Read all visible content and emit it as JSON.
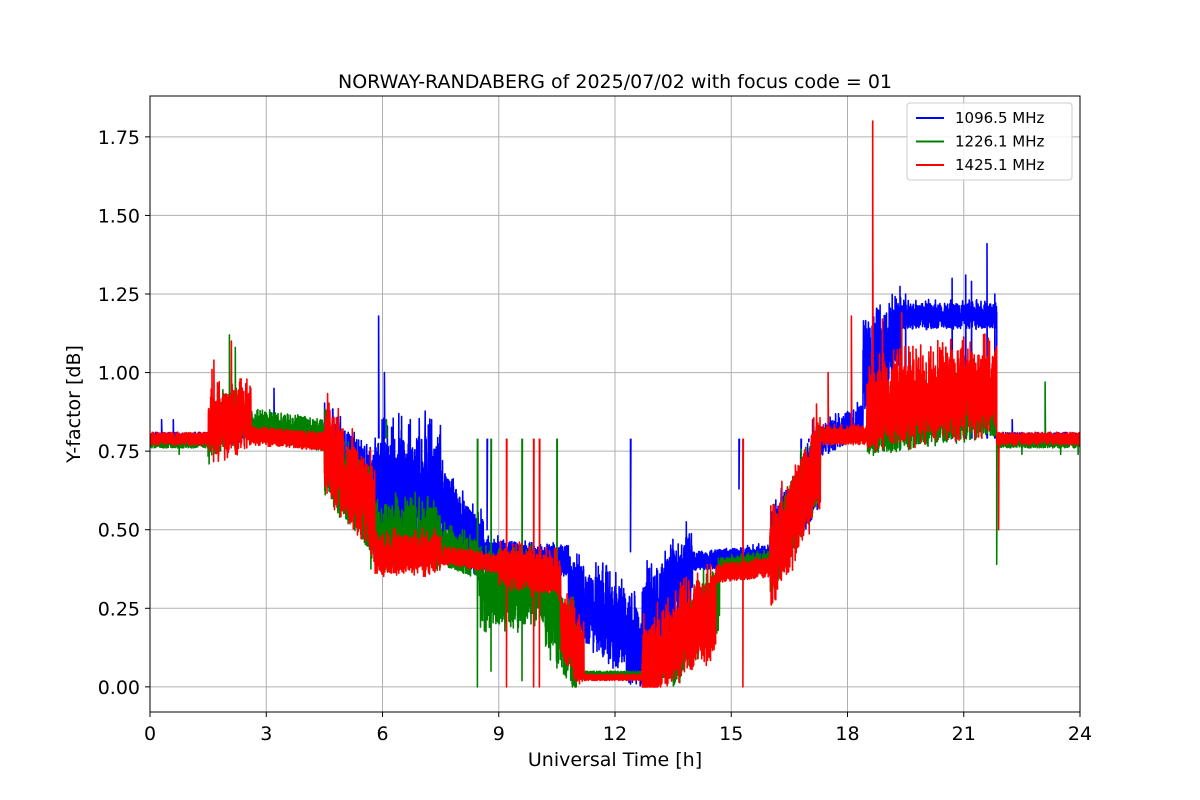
{
  "chart_data": {
    "type": "line",
    "title": "NORWAY-RANDABERG of 2025/07/02 with focus code = 01",
    "xlabel": "Universal Time [h]",
    "ylabel": "Y-factor [dB]",
    "xlim": [
      0,
      24
    ],
    "ylim": [
      -0.08,
      1.88
    ],
    "xticks": [
      0,
      3,
      6,
      9,
      12,
      15,
      18,
      21,
      24
    ],
    "xtick_labels": [
      "0",
      "3",
      "6",
      "9",
      "12",
      "15",
      "18",
      "21",
      "24"
    ],
    "yticks": [
      0.0,
      0.25,
      0.5,
      0.75,
      1.0,
      1.25,
      1.5,
      1.75
    ],
    "ytick_labels": [
      "0.00",
      "0.25",
      "0.50",
      "0.75",
      "1.00",
      "1.25",
      "1.50",
      "1.75"
    ],
    "grid": true,
    "legend_position": "top-right",
    "series": [
      {
        "name": "1096.5 MHz",
        "color": "#0000ff",
        "segments": [
          [
            0.0,
            0.79,
            1.5,
            0.79,
            0.02,
            0.05,
            0.8
          ],
          [
            1.5,
            0.79,
            2.8,
            0.82,
            0.03,
            0.1,
            0.9
          ],
          [
            2.8,
            0.82,
            4.5,
            0.78,
            0.03,
            0.1,
            0.9
          ],
          [
            4.5,
            0.76,
            5.8,
            0.62,
            0.12,
            0.2,
            1.2
          ],
          [
            5.8,
            0.62,
            7.5,
            0.62,
            0.18,
            0.2,
            1.3
          ],
          [
            7.5,
            0.6,
            8.6,
            0.42,
            0.1,
            0.15,
            1.3
          ],
          [
            8.6,
            0.42,
            10.8,
            0.4,
            0.05,
            0.1,
            1.2
          ],
          [
            10.8,
            0.3,
            12.7,
            0.12,
            0.12,
            0.25,
            1.4
          ],
          [
            12.7,
            0.2,
            14.0,
            0.38,
            0.12,
            0.2,
            1.4
          ],
          [
            14.0,
            0.4,
            16.0,
            0.42,
            0.03,
            0.12,
            1.2
          ],
          [
            16.0,
            0.42,
            17.3,
            0.7,
            0.12,
            0.15,
            1.2
          ],
          [
            17.3,
            0.78,
            18.4,
            0.85,
            0.05,
            0.15,
            1.2
          ],
          [
            18.4,
            1.0,
            19.4,
            1.12,
            0.12,
            0.25,
            1.4
          ],
          [
            19.4,
            1.18,
            21.85,
            1.18,
            0.04,
            0.2,
            1.2
          ],
          [
            21.85,
            0.79,
            24.0,
            0.79,
            0.02,
            0.05,
            0.8
          ]
        ],
        "spikes": [
          [
            0.3,
            0.85
          ],
          [
            0.6,
            0.85
          ],
          [
            1.9,
            0.88
          ],
          [
            3.2,
            0.95
          ],
          [
            5.9,
            1.18
          ],
          [
            6.05,
            1.0
          ],
          [
            8.7,
            0.5
          ],
          [
            12.4,
            0.43
          ],
          [
            15.2,
            0.63
          ],
          [
            16.8,
            0.7
          ],
          [
            17.0,
            0.78
          ],
          [
            17.1,
            0.85
          ],
          [
            19.5,
            1.25
          ],
          [
            20.7,
            1.3
          ],
          [
            21.05,
            1.31
          ],
          [
            21.2,
            1.29
          ],
          [
            21.6,
            1.41
          ],
          [
            21.8,
            1.25
          ],
          [
            22.25,
            0.85
          ]
        ]
      },
      {
        "name": "1226.1 MHz",
        "color": "#008000",
        "segments": [
          [
            0.0,
            0.78,
            1.5,
            0.78,
            0.02,
            0.1,
            0.8
          ],
          [
            1.5,
            0.8,
            2.4,
            0.88,
            0.08,
            0.2,
            1.3
          ],
          [
            2.4,
            0.84,
            4.5,
            0.8,
            0.05,
            0.15,
            1.0
          ],
          [
            4.5,
            0.74,
            5.7,
            0.55,
            0.12,
            0.2,
            1.3
          ],
          [
            5.7,
            0.48,
            7.5,
            0.48,
            0.1,
            0.2,
            1.3
          ],
          [
            7.5,
            0.45,
            8.5,
            0.4,
            0.06,
            0.2,
            1.3
          ],
          [
            8.5,
            0.3,
            10.2,
            0.3,
            0.1,
            0.25,
            1.4
          ],
          [
            10.2,
            0.25,
            11.0,
            0.1,
            0.12,
            0.2,
            1.3
          ],
          [
            11.0,
            0.04,
            13.5,
            0.04,
            0.01,
            0.05,
            1.0
          ],
          [
            13.5,
            0.1,
            14.7,
            0.3,
            0.1,
            0.2,
            1.3
          ],
          [
            14.7,
            0.38,
            16.0,
            0.4,
            0.03,
            0.1,
            1.1
          ],
          [
            16.0,
            0.4,
            17.3,
            0.72,
            0.12,
            0.15,
            1.2
          ],
          [
            17.3,
            0.8,
            18.5,
            0.8,
            0.02,
            0.1,
            1.0
          ],
          [
            18.5,
            0.82,
            21.85,
            0.88,
            0.08,
            0.25,
            1.2
          ],
          [
            21.85,
            0.78,
            24.0,
            0.78,
            0.02,
            0.1,
            0.8
          ]
        ],
        "spikes": [
          [
            0.75,
            0.74
          ],
          [
            2.05,
            1.12
          ],
          [
            2.2,
            1.08
          ],
          [
            2.9,
            0.88
          ],
          [
            3.4,
            0.82
          ],
          [
            4.0,
            0.86
          ],
          [
            6.1,
            0.85
          ],
          [
            8.45,
            0.0
          ],
          [
            8.8,
            0.05
          ],
          [
            9.6,
            0.02
          ],
          [
            10.5,
            0.06
          ],
          [
            20.5,
            0.86
          ],
          [
            21.85,
            0.39
          ],
          [
            22.5,
            0.74
          ],
          [
            23.1,
            0.97
          ],
          [
            23.5,
            0.74
          ],
          [
            23.95,
            0.74
          ]
        ]
      },
      {
        "name": "1425.1 MHz",
        "color": "#ff0000",
        "segments": [
          [
            0.0,
            0.79,
            1.5,
            0.79,
            0.02,
            0.05,
            0.8
          ],
          [
            1.5,
            0.82,
            2.6,
            0.86,
            0.1,
            0.25,
            1.3
          ],
          [
            2.6,
            0.8,
            4.5,
            0.78,
            0.03,
            0.1,
            0.9
          ],
          [
            4.5,
            0.76,
            5.8,
            0.55,
            0.14,
            0.2,
            1.3
          ],
          [
            5.8,
            0.42,
            7.5,
            0.42,
            0.06,
            0.2,
            1.3
          ],
          [
            7.5,
            0.42,
            9.0,
            0.39,
            0.03,
            0.15,
            1.1
          ],
          [
            9.0,
            0.38,
            10.6,
            0.35,
            0.06,
            0.3,
            1.4
          ],
          [
            10.6,
            0.2,
            11.2,
            0.08,
            0.1,
            0.25,
            1.3
          ],
          [
            11.2,
            0.03,
            12.7,
            0.03,
            0.01,
            0.05,
            0.9
          ],
          [
            12.7,
            0.06,
            14.6,
            0.24,
            0.12,
            0.25,
            1.4
          ],
          [
            14.6,
            0.36,
            16.0,
            0.38,
            0.03,
            0.1,
            1.1
          ],
          [
            16.0,
            0.38,
            17.3,
            0.72,
            0.14,
            0.15,
            1.3
          ],
          [
            17.3,
            0.8,
            18.5,
            0.8,
            0.03,
            0.15,
            1.1
          ],
          [
            18.5,
            0.88,
            21.85,
            0.95,
            0.12,
            0.3,
            1.4
          ],
          [
            21.85,
            0.79,
            24.0,
            0.79,
            0.02,
            0.05,
            0.8
          ]
        ],
        "spikes": [
          [
            1.6,
            1.01
          ],
          [
            1.65,
            1.04
          ],
          [
            2.1,
            1.1
          ],
          [
            2.35,
            0.98
          ],
          [
            2.6,
            0.95
          ],
          [
            9.2,
            0.0
          ],
          [
            9.9,
            0.0
          ],
          [
            10.05,
            0.0
          ],
          [
            15.3,
            0.0
          ],
          [
            17.2,
            0.9
          ],
          [
            17.5,
            1.0
          ],
          [
            18.1,
            1.18
          ],
          [
            18.65,
            1.8
          ],
          [
            18.9,
            1.17
          ],
          [
            19.4,
            1.19
          ],
          [
            21.9,
            0.5
          ]
        ]
      }
    ]
  }
}
